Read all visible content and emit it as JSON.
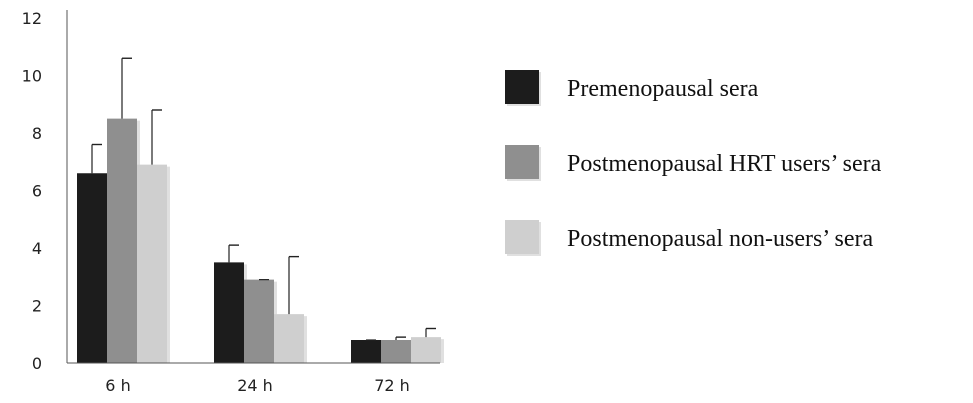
{
  "chart_data": {
    "type": "bar",
    "title": "",
    "xlabel": "",
    "ylabel": "",
    "ylim": [
      0,
      12
    ],
    "yticks": [
      0,
      2,
      4,
      6,
      8,
      10,
      12
    ],
    "grid": false,
    "legend_position": "right",
    "categories": [
      "6 h",
      "24 h",
      "72 h"
    ],
    "series": [
      {
        "name": "Premenopausal  sera",
        "color": "#1c1c1c",
        "values": [
          6.6,
          3.5,
          0.8
        ],
        "errors": [
          1.0,
          0.6,
          0.0
        ]
      },
      {
        "name": "Postmenopausal  HRT users’ sera",
        "color": "#8f8f8f",
        "values": [
          8.5,
          2.9,
          0.8
        ],
        "errors": [
          2.1,
          0.0,
          0.1
        ]
      },
      {
        "name": "Postmenopausal  non-users’ sera",
        "color": "#cfcfcf",
        "values": [
          6.9,
          1.7,
          0.9
        ],
        "errors": [
          1.9,
          2.0,
          0.3
        ]
      }
    ]
  }
}
